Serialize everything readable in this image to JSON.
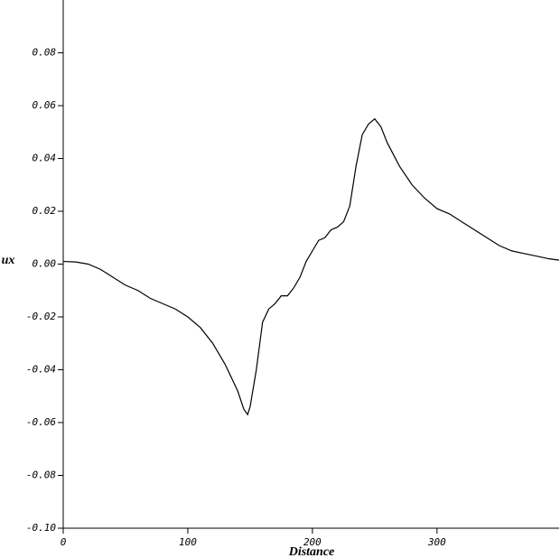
{
  "chart_data": {
    "type": "line",
    "xlabel": "Distance",
    "ylabel": "ux",
    "x": [
      0,
      10,
      20,
      30,
      40,
      50,
      60,
      70,
      80,
      90,
      100,
      110,
      120,
      130,
      140,
      145,
      148,
      150,
      155,
      160,
      165,
      170,
      175,
      180,
      185,
      190,
      195,
      200,
      205,
      210,
      215,
      220,
      225,
      230,
      235,
      240,
      245,
      250,
      255,
      260,
      270,
      280,
      290,
      300,
      310,
      320,
      330,
      340,
      350,
      360,
      370,
      380,
      390,
      398
    ],
    "series": [
      {
        "name": "ux",
        "color": "#000000",
        "values": [
          0.001,
          0.0008,
          0.0,
          -0.002,
          -0.005,
          -0.008,
          -0.01,
          -0.013,
          -0.015,
          -0.017,
          -0.02,
          -0.024,
          -0.03,
          -0.038,
          -0.048,
          -0.055,
          -0.057,
          -0.054,
          -0.04,
          -0.022,
          -0.017,
          -0.015,
          -0.012,
          -0.012,
          -0.009,
          -0.005,
          0.001,
          0.005,
          0.009,
          0.01,
          0.013,
          0.014,
          0.016,
          0.022,
          0.037,
          0.049,
          0.053,
          0.055,
          0.052,
          0.046,
          0.037,
          0.03,
          0.025,
          0.021,
          0.019,
          0.016,
          0.013,
          0.01,
          0.007,
          0.005,
          0.004,
          0.003,
          0.002,
          0.0015
        ]
      }
    ],
    "xlim": [
      0,
      398
    ],
    "ylim": [
      -0.1,
      0.1
    ],
    "xticks": [
      0,
      100,
      200,
      300
    ],
    "yticks": [
      {
        "value": -0.1,
        "label": "-0.10"
      },
      -0.08,
      -0.06,
      -0.04,
      -0.02,
      {
        "value": 0,
        "label": "0.00"
      },
      0.02,
      0.04,
      0.06,
      0.08
    ]
  }
}
